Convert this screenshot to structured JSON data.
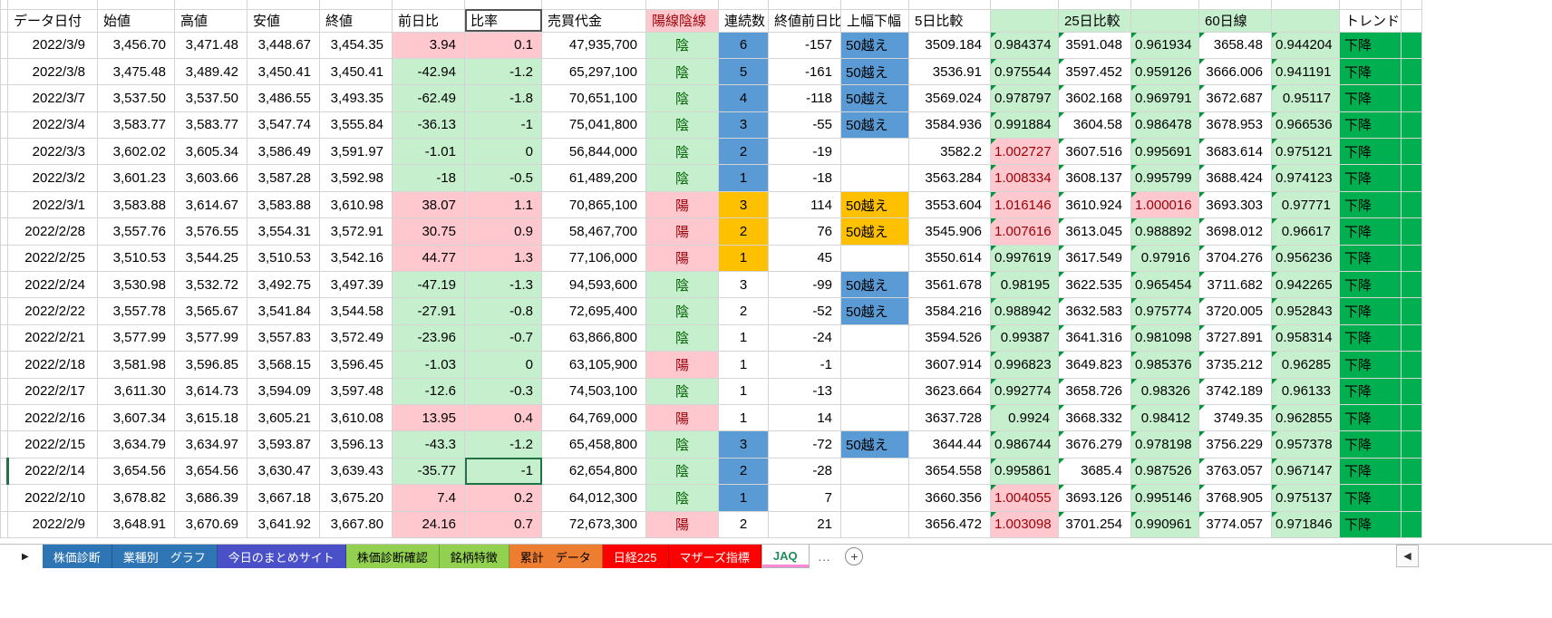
{
  "colors": {
    "positive_bg": "#FFC7CE",
    "negative_bg": "#C6EFCE",
    "bad_text": "#9C0006",
    "good_text": "#006100",
    "streak_blue": "#5B9BD5",
    "streak_orange": "#FFC000",
    "trend_green": "#00B050",
    "selection_green": "#217346"
  },
  "table": {
    "headers": [
      "データ日付",
      "始値",
      "高値",
      "安値",
      "終値",
      "前日比",
      "比率",
      "売買代金",
      "陽線陰線",
      "連続数",
      "終値前日比",
      "上幅下幅",
      "5日比較",
      "",
      "25日比較",
      "",
      "60日線",
      "",
      "トレンド"
    ],
    "rows": [
      {
        "date": "2022/3/9",
        "open": "3,456.70",
        "high": "3,471.48",
        "low": "3,448.67",
        "close": "3,454.35",
        "chg": "3.94",
        "pct": "0.1",
        "value": "47,935,700",
        "candle": "陰",
        "streak": "6",
        "streak_bg": "blue",
        "chg2": "-157",
        "width": "50越え",
        "width_bg": "blue",
        "d5": "3509.184",
        "d5r": "0.984374",
        "d25": "3591.048",
        "d25r": "0.961934",
        "d60": "3658.48",
        "d60r": "0.944204",
        "trend": "下降"
      },
      {
        "date": "2022/3/8",
        "open": "3,475.48",
        "high": "3,489.42",
        "low": "3,450.41",
        "close": "3,450.41",
        "chg": "-42.94",
        "pct": "-1.2",
        "value": "65,297,100",
        "candle": "陰",
        "streak": "5",
        "streak_bg": "blue",
        "chg2": "-161",
        "width": "50越え",
        "width_bg": "blue",
        "d5": "3536.91",
        "d5r": "0.975544",
        "d25": "3597.452",
        "d25r": "0.959126",
        "d60": "3666.006",
        "d60r": "0.941191",
        "trend": "下降"
      },
      {
        "date": "2022/3/7",
        "open": "3,537.50",
        "high": "3,537.50",
        "low": "3,486.55",
        "close": "3,493.35",
        "chg": "-62.49",
        "pct": "-1.8",
        "value": "70,651,100",
        "candle": "陰",
        "streak": "4",
        "streak_bg": "blue",
        "chg2": "-118",
        "width": "50越え",
        "width_bg": "blue",
        "d5": "3569.024",
        "d5r": "0.978797",
        "d25": "3602.168",
        "d25r": "0.969791",
        "d60": "3672.687",
        "d60r": "0.95117",
        "trend": "下降"
      },
      {
        "date": "2022/3/4",
        "open": "3,583.77",
        "high": "3,583.77",
        "low": "3,547.74",
        "close": "3,555.84",
        "chg": "-36.13",
        "pct": "-1",
        "value": "75,041,800",
        "candle": "陰",
        "streak": "3",
        "streak_bg": "blue",
        "chg2": "-55",
        "width": "50越え",
        "width_bg": "blue",
        "d5": "3584.936",
        "d5r": "0.991884",
        "d25": "3604.58",
        "d25r": "0.986478",
        "d60": "3678.953",
        "d60r": "0.966536",
        "trend": "下降"
      },
      {
        "date": "2022/3/3",
        "open": "3,602.02",
        "high": "3,605.34",
        "low": "3,586.49",
        "close": "3,591.97",
        "chg": "-1.01",
        "pct": "0",
        "value": "56,844,000",
        "candle": "陰",
        "streak": "2",
        "streak_bg": "blue",
        "chg2": "-19",
        "width": "",
        "width_bg": "",
        "d5": "3582.2",
        "d5r": "1.002727",
        "d25": "3607.516",
        "d25r": "0.995691",
        "d60": "3683.614",
        "d60r": "0.975121",
        "trend": "下降"
      },
      {
        "date": "2022/3/2",
        "open": "3,601.23",
        "high": "3,603.66",
        "low": "3,587.28",
        "close": "3,592.98",
        "chg": "-18",
        "pct": "-0.5",
        "value": "61,489,200",
        "candle": "陰",
        "streak": "1",
        "streak_bg": "blue",
        "chg2": "-18",
        "width": "",
        "width_bg": "",
        "d5": "3563.284",
        "d5r": "1.008334",
        "d25": "3608.137",
        "d25r": "0.995799",
        "d60": "3688.424",
        "d60r": "0.974123",
        "trend": "下降"
      },
      {
        "date": "2022/3/1",
        "open": "3,583.88",
        "high": "3,614.67",
        "low": "3,583.88",
        "close": "3,610.98",
        "chg": "38.07",
        "pct": "1.1",
        "value": "70,865,100",
        "candle": "陽",
        "streak": "3",
        "streak_bg": "orange",
        "chg2": "114",
        "width": "50越え",
        "width_bg": "orange",
        "d5": "3553.604",
        "d5r": "1.016146",
        "d25": "3610.924",
        "d25r": "1.000016",
        "d60": "3693.303",
        "d60r": "0.97771",
        "trend": "下降"
      },
      {
        "date": "2022/2/28",
        "open": "3,557.76",
        "high": "3,576.55",
        "low": "3,554.31",
        "close": "3,572.91",
        "chg": "30.75",
        "pct": "0.9",
        "value": "58,467,700",
        "candle": "陽",
        "streak": "2",
        "streak_bg": "orange",
        "chg2": "76",
        "width": "50越え",
        "width_bg": "orange",
        "d5": "3545.906",
        "d5r": "1.007616",
        "d25": "3613.045",
        "d25r": "0.988892",
        "d60": "3698.012",
        "d60r": "0.96617",
        "trend": "下降"
      },
      {
        "date": "2022/2/25",
        "open": "3,510.53",
        "high": "3,544.25",
        "low": "3,510.53",
        "close": "3,542.16",
        "chg": "44.77",
        "pct": "1.3",
        "value": "77,106,000",
        "candle": "陽",
        "streak": "1",
        "streak_bg": "orange",
        "chg2": "45",
        "width": "",
        "width_bg": "",
        "d5": "3550.614",
        "d5r": "0.997619",
        "d25": "3617.549",
        "d25r": "0.97916",
        "d60": "3704.276",
        "d60r": "0.956236",
        "trend": "下降"
      },
      {
        "date": "2022/2/24",
        "open": "3,530.98",
        "high": "3,532.72",
        "low": "3,492.75",
        "close": "3,497.39",
        "chg": "-47.19",
        "pct": "-1.3",
        "value": "94,593,600",
        "candle": "陰",
        "streak": "3",
        "streak_bg": "",
        "chg2": "-99",
        "width": "50越え",
        "width_bg": "blue",
        "d5": "3561.678",
        "d5r": "0.98195",
        "d25": "3622.535",
        "d25r": "0.965454",
        "d60": "3711.682",
        "d60r": "0.942265",
        "trend": "下降"
      },
      {
        "date": "2022/2/22",
        "open": "3,557.78",
        "high": "3,565.67",
        "low": "3,541.84",
        "close": "3,544.58",
        "chg": "-27.91",
        "pct": "-0.8",
        "value": "72,695,400",
        "candle": "陰",
        "streak": "2",
        "streak_bg": "",
        "chg2": "-52",
        "width": "50越え",
        "width_bg": "blue",
        "d5": "3584.216",
        "d5r": "0.988942",
        "d25": "3632.583",
        "d25r": "0.975774",
        "d60": "3720.005",
        "d60r": "0.952843",
        "trend": "下降"
      },
      {
        "date": "2022/2/21",
        "open": "3,577.99",
        "high": "3,577.99",
        "low": "3,557.83",
        "close": "3,572.49",
        "chg": "-23.96",
        "pct": "-0.7",
        "value": "63,866,800",
        "candle": "陰",
        "streak": "1",
        "streak_bg": "",
        "chg2": "-24",
        "width": "",
        "width_bg": "",
        "d5": "3594.526",
        "d5r": "0.99387",
        "d25": "3641.316",
        "d25r": "0.981098",
        "d60": "3727.891",
        "d60r": "0.958314",
        "trend": "下降"
      },
      {
        "date": "2022/2/18",
        "open": "3,581.98",
        "high": "3,596.85",
        "low": "3,568.15",
        "close": "3,596.45",
        "chg": "-1.03",
        "pct": "0",
        "value": "63,105,900",
        "candle": "陽",
        "streak": "1",
        "streak_bg": "",
        "chg2": "-1",
        "width": "",
        "width_bg": "",
        "d5": "3607.914",
        "d5r": "0.996823",
        "d25": "3649.823",
        "d25r": "0.985376",
        "d60": "3735.212",
        "d60r": "0.96285",
        "trend": "下降"
      },
      {
        "date": "2022/2/17",
        "open": "3,611.30",
        "high": "3,614.73",
        "low": "3,594.09",
        "close": "3,597.48",
        "chg": "-12.6",
        "pct": "-0.3",
        "value": "74,503,100",
        "candle": "陰",
        "streak": "1",
        "streak_bg": "",
        "chg2": "-13",
        "width": "",
        "width_bg": "",
        "d5": "3623.664",
        "d5r": "0.992774",
        "d25": "3658.726",
        "d25r": "0.98326",
        "d60": "3742.189",
        "d60r": "0.96133",
        "trend": "下降"
      },
      {
        "date": "2022/2/16",
        "open": "3,607.34",
        "high": "3,615.18",
        "low": "3,605.21",
        "close": "3,610.08",
        "chg": "13.95",
        "pct": "0.4",
        "value": "64,769,000",
        "candle": "陽",
        "streak": "1",
        "streak_bg": "",
        "chg2": "14",
        "width": "",
        "width_bg": "",
        "d5": "3637.728",
        "d5r": "0.9924",
        "d25": "3668.332",
        "d25r": "0.98412",
        "d60": "3749.35",
        "d60r": "0.962855",
        "trend": "下降"
      },
      {
        "date": "2022/2/15",
        "open": "3,634.79",
        "high": "3,634.97",
        "low": "3,593.87",
        "close": "3,596.13",
        "chg": "-43.3",
        "pct": "-1.2",
        "value": "65,458,800",
        "candle": "陰",
        "streak": "3",
        "streak_bg": "blue",
        "chg2": "-72",
        "width": "50越え",
        "width_bg": "blue",
        "d5": "3644.44",
        "d5r": "0.986744",
        "d25": "3676.279",
        "d25r": "0.978198",
        "d60": "3756.229",
        "d60r": "0.957378",
        "trend": "下降"
      },
      {
        "date": "2022/2/14",
        "open": "3,654.56",
        "high": "3,654.56",
        "low": "3,630.47",
        "close": "3,639.43",
        "chg": "-35.77",
        "pct": "-1",
        "value": "62,654,800",
        "candle": "陰",
        "streak": "2",
        "streak_bg": "blue",
        "chg2": "-28",
        "width": "",
        "width_bg": "",
        "d5": "3654.558",
        "d5r": "0.995861",
        "d25": "3685.4",
        "d25r": "0.987526",
        "d60": "3763.057",
        "d60r": "0.967147",
        "trend": "下降"
      },
      {
        "date": "2022/2/10",
        "open": "3,678.82",
        "high": "3,686.39",
        "low": "3,667.18",
        "close": "3,675.20",
        "chg": "7.4",
        "pct": "0.2",
        "value": "64,012,300",
        "candle": "陰",
        "streak": "1",
        "streak_bg": "blue",
        "chg2": "7",
        "width": "",
        "width_bg": "",
        "d5": "3660.356",
        "d5r": "1.004055",
        "d25": "3693.126",
        "d25r": "0.995146",
        "d60": "3768.905",
        "d60r": "0.975137",
        "trend": "下降"
      },
      {
        "date": "2022/2/9",
        "open": "3,648.91",
        "high": "3,670.69",
        "low": "3,641.92",
        "close": "3,667.80",
        "chg": "24.16",
        "pct": "0.7",
        "value": "72,673,300",
        "candle": "陽",
        "streak": "2",
        "streak_bg": "",
        "chg2": "21",
        "width": "",
        "width_bg": "",
        "d5": "3656.472",
        "d5r": "1.003098",
        "d25": "3701.254",
        "d25r": "0.990961",
        "d60": "3774.057",
        "d60r": "0.971846",
        "trend": "下降"
      }
    ]
  },
  "selection": {
    "row_date": "2022/2/14",
    "column": "比率",
    "value": "-1"
  },
  "tabbar": {
    "nav_arrow": "▶",
    "tabs": [
      {
        "label": "株価診断",
        "bg": "#2E75B6",
        "fg": "#FFFFFF"
      },
      {
        "label": "業種別　グラフ",
        "bg": "#2E75B6",
        "fg": "#FFFFFF"
      },
      {
        "label": "今日のまとめサイト",
        "bg": "#4A50C8",
        "fg": "#FFFFFF"
      },
      {
        "label": "株価診断確認",
        "bg": "#92D050",
        "fg": "#000000"
      },
      {
        "label": "銘柄特徴",
        "bg": "#92D050",
        "fg": "#000000"
      },
      {
        "label": "累計　データ",
        "bg": "#ED7D31",
        "fg": "#000000"
      },
      {
        "label": "日経225",
        "bg": "#FF0000",
        "fg": "#FFFFFF"
      },
      {
        "label": "マザーズ指標",
        "bg": "#FF0000",
        "fg": "#FFFFFF"
      },
      {
        "label": "JAQ",
        "bg": "#FFFFFF",
        "fg": "#1E8E5A",
        "active": true,
        "underline": "#FF8AD8"
      }
    ],
    "more_label": "...",
    "add_icon": "+",
    "scroll_left_icon": "◀"
  }
}
